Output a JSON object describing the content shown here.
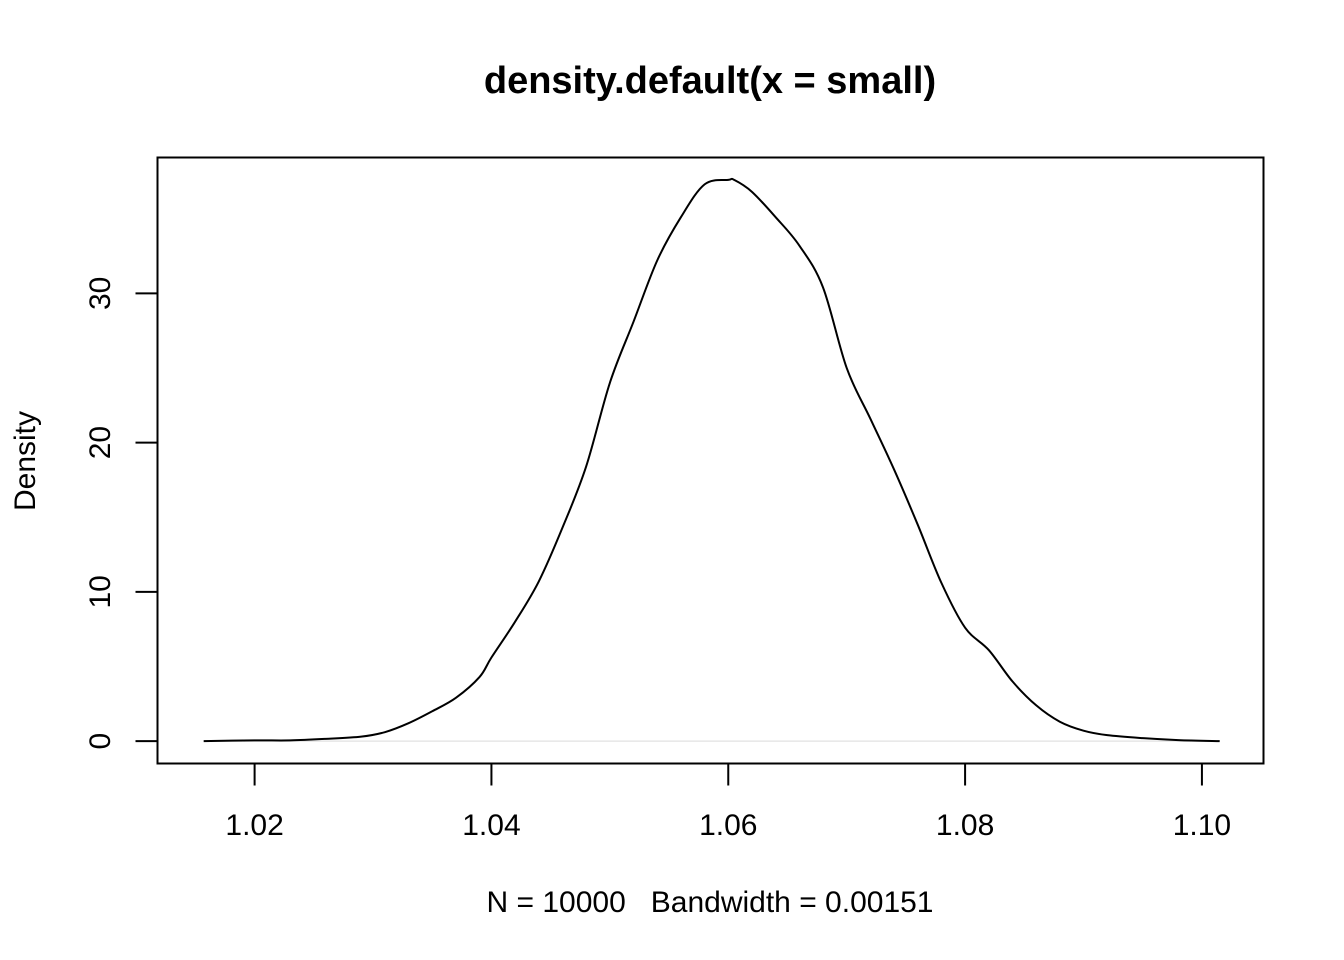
{
  "chart_data": {
    "type": "line",
    "title": "density.default(x = small)",
    "xlabel": "N = 10000   Bandwidth = 0.00151",
    "ylabel": "Density",
    "xlim": [
      1.0118,
      1.1052
    ],
    "ylim": [
      -1.5,
      39.1
    ],
    "x_ticks": [
      1.02,
      1.04,
      1.06,
      1.08,
      1.1
    ],
    "x_tick_labels": [
      "1.02",
      "1.04",
      "1.06",
      "1.08",
      "1.10"
    ],
    "y_ticks": [
      0,
      10,
      20,
      30
    ],
    "y_tick_labels": [
      "0",
      "10",
      "20",
      "30"
    ],
    "grid": false,
    "baseline": 0,
    "series": [
      {
        "x": [
          1.0157,
          1.02,
          1.023,
          1.026,
          1.029,
          1.031,
          1.033,
          1.035,
          1.037,
          1.039,
          1.04,
          1.042,
          1.044,
          1.046,
          1.048,
          1.05,
          1.052,
          1.054,
          1.056,
          1.058,
          1.06,
          1.0605,
          1.062,
          1.064,
          1.066,
          1.068,
          1.07,
          1.072,
          1.074,
          1.076,
          1.078,
          1.08,
          1.082,
          1.084,
          1.086,
          1.088,
          1.09,
          1.092,
          1.095,
          1.098,
          1.1015
        ],
        "y": [
          0,
          0.05,
          0.05,
          0.15,
          0.3,
          0.6,
          1.2,
          2.0,
          2.9,
          4.3,
          5.6,
          8.0,
          10.7,
          14.3,
          18.4,
          24.0,
          28.1,
          32.2,
          35.1,
          37.3,
          37.6,
          37.6,
          36.8,
          35.1,
          33.2,
          30.4,
          25.0,
          21.6,
          18.2,
          14.5,
          10.6,
          7.6,
          6.1,
          4.0,
          2.4,
          1.3,
          0.7,
          0.4,
          0.2,
          0.07,
          0
        ]
      }
    ]
  }
}
